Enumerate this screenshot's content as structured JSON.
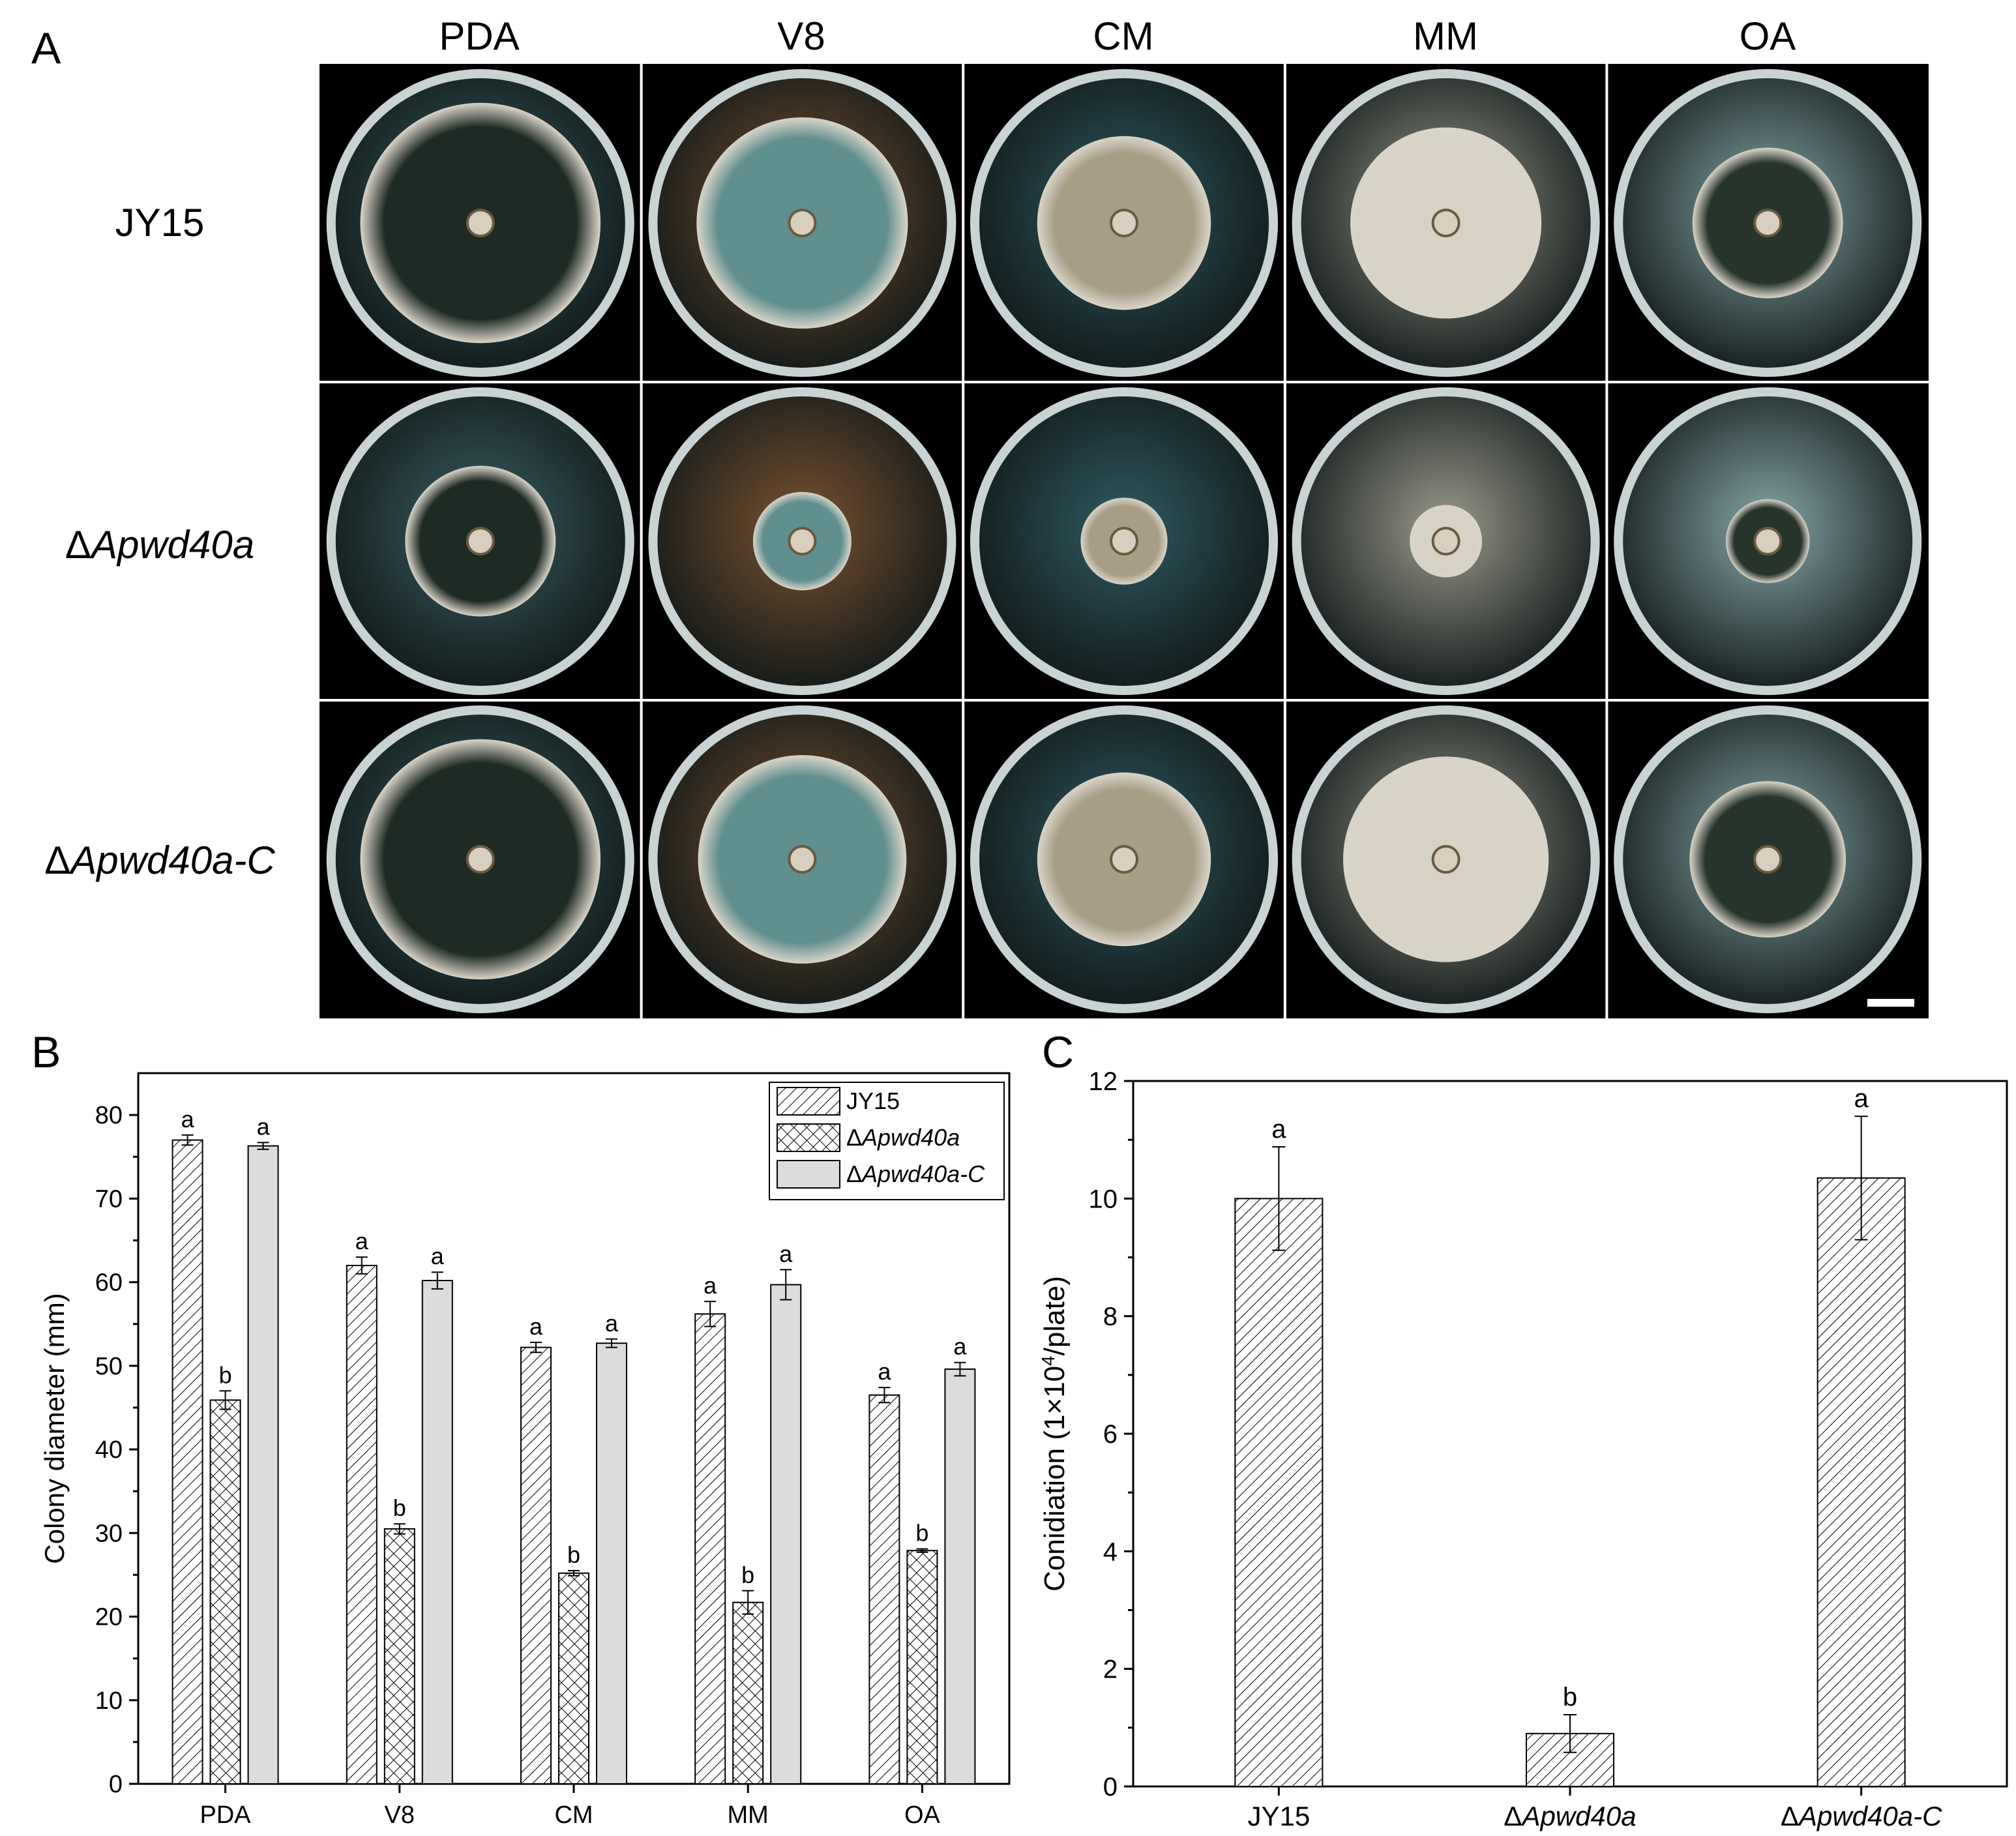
{
  "panel_labels": {
    "a": "A",
    "b": "B",
    "c": "C"
  },
  "panel_a": {
    "media": [
      "PDA",
      "V8",
      "CM",
      "MM",
      "OA"
    ],
    "strains": [
      {
        "prefix": "",
        "name": "JY15"
      },
      {
        "prefix": "Δ",
        "name": "Apwd40a"
      },
      {
        "prefix": "Δ",
        "name": "Apwd40a-C"
      }
    ],
    "colors": {
      "PDA": "#3a5f62",
      "V8": "#7a5230",
      "CM": "#2f5a62",
      "MM": "#9a9a8c",
      "OA": "#86a7a8"
    },
    "colony_colors": {
      "PDA": "#1e2a24",
      "V8": "#5f8f8f",
      "CM": "#a89e86",
      "MM": "#d8d2c6",
      "OA": "#26342c"
    },
    "colony_diameter_fraction": [
      [
        0.83,
        0.73,
        0.6,
        0.66,
        0.52
      ],
      [
        0.52,
        0.34,
        0.3,
        0.25,
        0.29
      ],
      [
        0.83,
        0.72,
        0.6,
        0.71,
        0.54
      ]
    ]
  },
  "chart_data": [
    {
      "type": "bar",
      "panel": "B",
      "title": "",
      "xlabel": "",
      "ylabel": "Colony diameter (mm)",
      "ylim": [
        0,
        85
      ],
      "yticks": [
        "0",
        "10",
        "20",
        "30",
        "40",
        "50",
        "60",
        "70",
        "80"
      ],
      "categories": [
        "PDA",
        "V8",
        "CM",
        "MM",
        "OA"
      ],
      "series": [
        {
          "name": "JY15",
          "prefix": "",
          "name_italic": false,
          "pattern": "diagonal",
          "values": [
            77.0,
            62.0,
            52.2,
            56.2,
            46.5
          ],
          "errors": [
            0.6,
            1.0,
            0.6,
            1.5,
            0.9
          ],
          "letters": [
            "a",
            "a",
            "a",
            "a",
            "a"
          ]
        },
        {
          "name": "Apwd40a",
          "prefix": "Δ",
          "name_italic": true,
          "pattern": "crosshatch",
          "values": [
            45.9,
            30.5,
            25.2,
            21.7,
            27.9
          ],
          "errors": [
            1.1,
            0.6,
            0.3,
            1.4,
            0.2
          ],
          "letters": [
            "b",
            "b",
            "b",
            "b",
            "b"
          ]
        },
        {
          "name": "Apwd40a-C",
          "prefix": "Δ",
          "name_italic": true,
          "pattern": "solid",
          "values": [
            76.3,
            60.2,
            52.7,
            59.7,
            49.6
          ],
          "errors": [
            0.4,
            1.0,
            0.5,
            1.8,
            0.8
          ],
          "letters": [
            "a",
            "a",
            "a",
            "a",
            "a"
          ]
        }
      ],
      "legend": "top-right",
      "grid": false
    },
    {
      "type": "bar",
      "panel": "C",
      "title": "",
      "xlabel": "",
      "ylabel_parts": {
        "before": "Conidiation (1×10",
        "sup": "4",
        "after": "/plate)"
      },
      "ylim": [
        0,
        12
      ],
      "yticks": [
        "0",
        "2",
        "4",
        "6",
        "8",
        "10",
        "12"
      ],
      "categories": [
        {
          "prefix": "",
          "name": "JY15",
          "italic": false
        },
        {
          "prefix": "Δ",
          "name": "Apwd40a",
          "italic": true
        },
        {
          "prefix": "Δ",
          "name": "Apwd40a-C",
          "italic": true
        }
      ],
      "values": [
        10.0,
        0.9,
        10.35
      ],
      "errors": [
        0.88,
        0.32,
        1.05
      ],
      "letters": [
        "a",
        "b",
        "a"
      ],
      "pattern": "diagonal",
      "grid": false
    }
  ]
}
